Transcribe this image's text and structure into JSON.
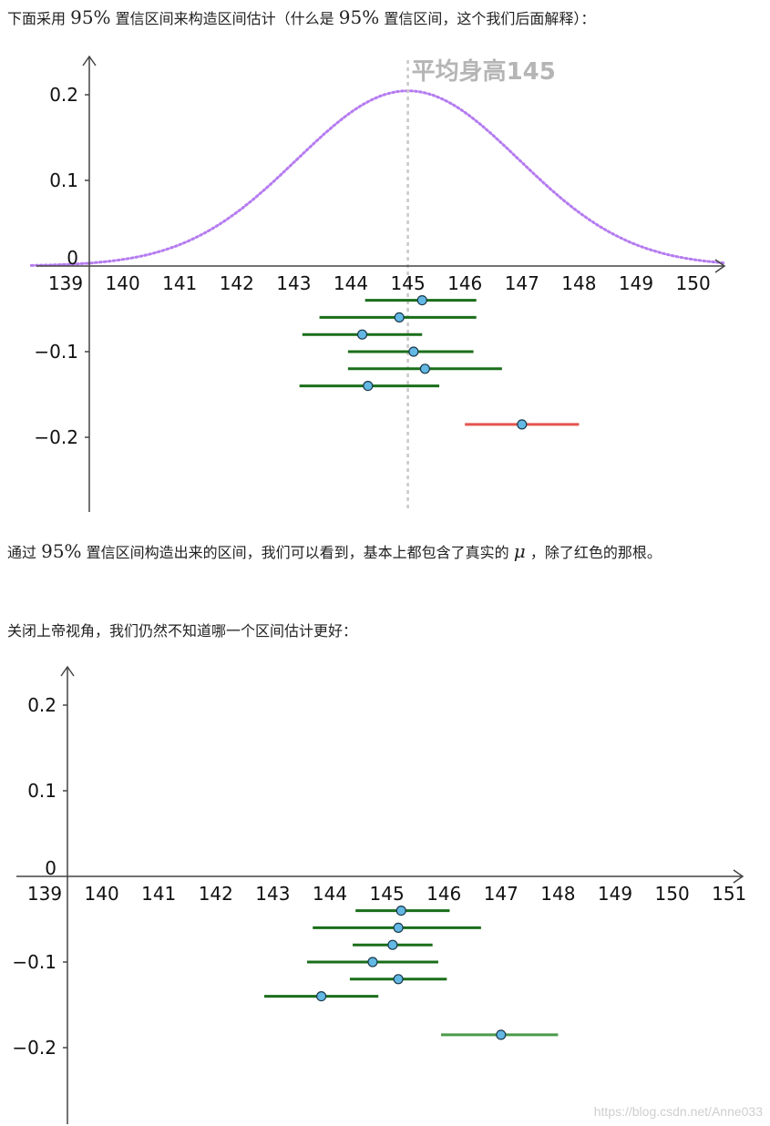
{
  "text": {
    "p1_a": "下面采用",
    "p1_b": "置信区间来构造区间估计（什么是",
    "p1_c": "置信区间，这个我们后面解释）：",
    "conf": "95%",
    "p2_a": "通过",
    "p2_b": "置信区间构造出来的区间，我们可以看到，基本上都包含了真实的",
    "mu": "μ",
    "p2_c": "，除了红色的那根。",
    "p3": "关闭上帝视角，我们仍然不知道哪一个区间估计更好：",
    "watermark": "https://blog.csdn.net/Anne033"
  },
  "chart_data": [
    {
      "type": "scatter",
      "title": "",
      "annotation": "平均身高145",
      "mean_line_x": 145,
      "xlim": [
        139,
        150
      ],
      "ylim": [
        -0.25,
        0.2
      ],
      "x_ticks": [
        "139",
        "140",
        "141",
        "142",
        "143",
        "144",
        "145",
        "146",
        "147",
        "148",
        "149",
        "150"
      ],
      "y_ticks": [
        "0.2",
        "0.1",
        "0",
        "−0.1",
        "−0.2"
      ],
      "y_tick_values": [
        0.2,
        0.1,
        0,
        -0.1,
        -0.2
      ],
      "density_curve": {
        "mean": 145,
        "sd": 1.95,
        "color": "#b57cf0"
      },
      "intervals": [
        {
          "center": 145.25,
          "low": 144.25,
          "high": 146.2,
          "y": -0.04,
          "color": "#1a6e1a"
        },
        {
          "center": 144.85,
          "low": 143.45,
          "high": 146.2,
          "y": -0.06,
          "color": "#1a6e1a"
        },
        {
          "center": 144.2,
          "low": 143.15,
          "high": 145.25,
          "y": -0.08,
          "color": "#1a6e1a"
        },
        {
          "center": 145.1,
          "low": 143.95,
          "high": 146.15,
          "y": -0.1,
          "color": "#1a6e1a"
        },
        {
          "center": 145.3,
          "low": 143.95,
          "high": 146.65,
          "y": -0.12,
          "color": "#1a6e1a"
        },
        {
          "center": 144.3,
          "low": 143.1,
          "high": 145.55,
          "y": -0.14,
          "color": "#1a6e1a"
        },
        {
          "center": 147.0,
          "low": 146.0,
          "high": 148.0,
          "y": -0.185,
          "color": "#e5554d"
        }
      ],
      "point_color": "#63b8e4"
    },
    {
      "type": "scatter",
      "title": "",
      "xlim": [
        139,
        151
      ],
      "ylim": [
        -0.25,
        0.2
      ],
      "x_ticks": [
        "139",
        "140",
        "141",
        "142",
        "143",
        "144",
        "145",
        "146",
        "147",
        "148",
        "149",
        "150",
        "151"
      ],
      "y_ticks": [
        "0.2",
        "0.1",
        "0",
        "−0.1",
        "−0.2"
      ],
      "y_tick_values": [
        0.2,
        0.1,
        0,
        -0.1,
        -0.2
      ],
      "intervals": [
        {
          "center": 145.25,
          "low": 144.45,
          "high": 146.1,
          "y": -0.04,
          "color": "#1a6e1a"
        },
        {
          "center": 145.2,
          "low": 143.7,
          "high": 146.65,
          "y": -0.06,
          "color": "#1a6e1a"
        },
        {
          "center": 145.1,
          "low": 144.4,
          "high": 145.8,
          "y": -0.08,
          "color": "#1a6e1a"
        },
        {
          "center": 144.75,
          "low": 143.6,
          "high": 145.9,
          "y": -0.1,
          "color": "#1a6e1a"
        },
        {
          "center": 145.2,
          "low": 144.35,
          "high": 146.05,
          "y": -0.12,
          "color": "#1a6e1a"
        },
        {
          "center": 143.85,
          "low": 142.85,
          "high": 144.85,
          "y": -0.14,
          "color": "#1a6e1a"
        },
        {
          "center": 147.0,
          "low": 145.95,
          "high": 148.0,
          "y": -0.185,
          "color": "#4a9a4a"
        }
      ],
      "point_color": "#63b8e4"
    }
  ]
}
